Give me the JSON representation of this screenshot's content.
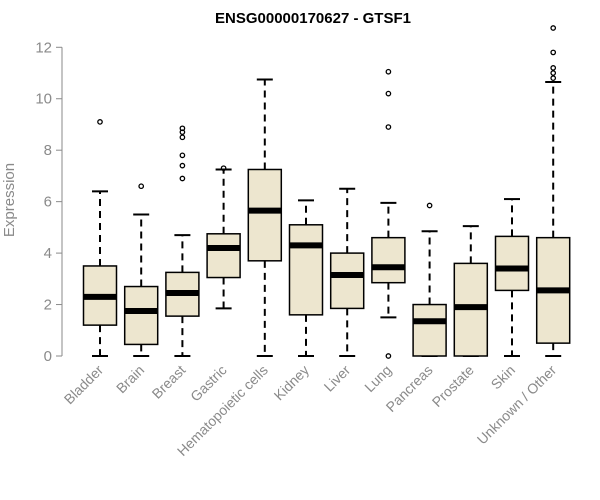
{
  "chart_data": {
    "type": "boxplot",
    "title": "ENSG00000170627 - GTSF1",
    "xlabel": "",
    "ylabel": "Expression",
    "ylim": [
      0,
      12.4
    ],
    "yticks": [
      0,
      2,
      4,
      6,
      8,
      10,
      12
    ],
    "box_fill": "#ede6cf",
    "box_stroke": "#000000",
    "series": [
      {
        "name": "Bladder",
        "whisker_low": 0,
        "q1": 1.2,
        "median": 2.3,
        "q3": 3.5,
        "whisker_high": 6.4,
        "outliers": [
          9.1
        ]
      },
      {
        "name": "Brain",
        "whisker_low": 0,
        "q1": 0.45,
        "median": 1.75,
        "q3": 2.7,
        "whisker_high": 5.5,
        "outliers": [
          6.6
        ]
      },
      {
        "name": "Breast",
        "whisker_low": 0,
        "q1": 1.55,
        "median": 2.45,
        "q3": 3.25,
        "whisker_high": 4.7,
        "outliers": [
          6.9,
          7.4,
          7.8,
          8.5,
          8.7,
          8.85
        ]
      },
      {
        "name": "Gastric",
        "whisker_low": 1.85,
        "q1": 3.05,
        "median": 4.2,
        "q3": 4.75,
        "whisker_high": 7.25,
        "outliers": [
          7.3
        ]
      },
      {
        "name": "Hematopoietic cells",
        "whisker_low": 0,
        "q1": 3.7,
        "median": 5.65,
        "q3": 7.25,
        "whisker_high": 10.75,
        "outliers": []
      },
      {
        "name": "Kidney",
        "whisker_low": 0,
        "q1": 1.6,
        "median": 4.3,
        "q3": 5.1,
        "whisker_high": 6.05,
        "outliers": []
      },
      {
        "name": "Liver",
        "whisker_low": 0,
        "q1": 1.85,
        "median": 3.15,
        "q3": 4.0,
        "whisker_high": 6.5,
        "outliers": []
      },
      {
        "name": "Lung",
        "whisker_low": 1.5,
        "q1": 2.85,
        "median": 3.45,
        "q3": 4.6,
        "whisker_high": 5.95,
        "outliers": [
          0.0,
          8.9,
          10.2,
          11.05
        ]
      },
      {
        "name": "Pancreas",
        "whisker_low": 0,
        "q1": 0,
        "median": 1.35,
        "q3": 2.0,
        "whisker_high": 4.85,
        "outliers": [
          5.85
        ]
      },
      {
        "name": "Prostate",
        "whisker_low": 0,
        "q1": 0,
        "median": 1.9,
        "q3": 3.6,
        "whisker_high": 5.05,
        "outliers": []
      },
      {
        "name": "Skin",
        "whisker_low": 0,
        "q1": 2.55,
        "median": 3.4,
        "q3": 4.65,
        "whisker_high": 6.1,
        "outliers": []
      },
      {
        "name": "Unknown / Other",
        "whisker_low": 0,
        "q1": 0.5,
        "median": 2.55,
        "q3": 4.6,
        "whisker_high": 10.65,
        "outliers": [
          10.8,
          11.0,
          11.2,
          11.8,
          12.75
        ]
      }
    ]
  }
}
